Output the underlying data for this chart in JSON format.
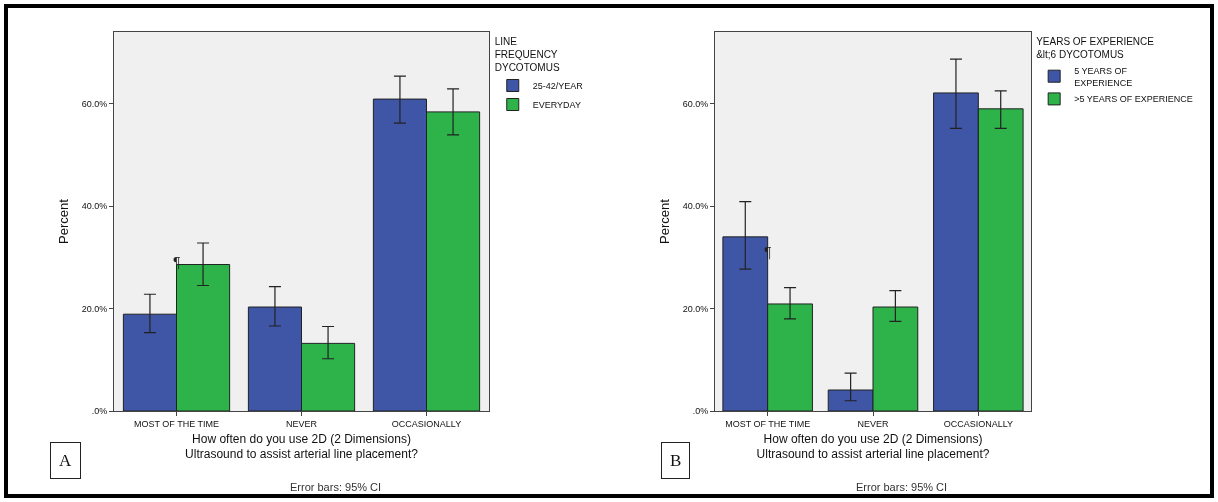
{
  "chart_data": [
    {
      "type": "bar",
      "xlabel": "How often do you use 2D (2 Dimensions)\nUltrasound to assist arterial line placement?",
      "ylabel": "Percent",
      "legend_title": "LINE\nFREQUENCY\nDYCOTOMUS",
      "categories": [
        "MOST OF THE TIME",
        "NEVER",
        "OCCASIONALLY"
      ],
      "series": [
        {
          "name": "25-42/YEAR",
          "color": "#3f55a6",
          "values": [
            18.9,
            20.3,
            60.9
          ],
          "errors": [
            [
              15.3,
              22.8
            ],
            [
              16.6,
              24.3
            ],
            [
              56.2,
              65.4
            ]
          ]
        },
        {
          "name": "EVERYDAY",
          "color": "#2db34a",
          "values": [
            28.6,
            13.2,
            58.4
          ],
          "errors": [
            [
              24.5,
              32.8
            ],
            [
              10.2,
              16.5
            ],
            [
              53.9,
              62.9
            ]
          ]
        }
      ],
      "ylim": [
        0,
        74
      ],
      "yticks": [
        {
          "value": 0,
          "label": ".0%"
        },
        {
          "value": 20,
          "label": "20.0%"
        },
        {
          "value": 40,
          "label": "40.0%"
        },
        {
          "value": 60,
          "label": "60.0%"
        }
      ],
      "grid": false,
      "legend": "right",
      "annotations": [
        "A",
        "Error bars: 95% CI",
        {
          "text": "¶",
          "x": "MOST OF THE TIME",
          "y": 29
        }
      ]
    },
    {
      "type": "bar",
      "xlabel": "How often do you use 2D (2 Dimensions)\nUltrasound to assist arterial line placement?",
      "ylabel": "Percent",
      "legend_title": "YEARS OF EXPERIENCE\n&lt;6 DYCOTOMUS",
      "categories": [
        "MOST OF THE TIME",
        "NEVER",
        "OCCASIONALLY"
      ],
      "series": [
        {
          "name": "5 YEARS OF\nEXPERIENCE",
          "color": "#3f55a6",
          "values": [
            34.0,
            4.1,
            62.1
          ],
          "errors": [
            [
              27.7,
              40.9
            ],
            [
              2.0,
              7.4
            ],
            [
              55.2,
              68.7
            ]
          ]
        },
        {
          "name": ">5 YEARS OF EXPERIENCE",
          "color": "#2db34a",
          "values": [
            20.9,
            20.3,
            59.0
          ],
          "errors": [
            [
              18.0,
              24.1
            ],
            [
              17.5,
              23.5
            ],
            [
              55.2,
              62.5
            ]
          ]
        }
      ],
      "ylim": [
        0,
        74
      ],
      "yticks": [
        {
          "value": 0,
          "label": ".0%"
        },
        {
          "value": 20,
          "label": "20.0%"
        },
        {
          "value": 40,
          "label": "40.0%"
        },
        {
          "value": 60,
          "label": "60.0%"
        }
      ],
      "grid": false,
      "legend": "right",
      "annotations": [
        "B",
        "Error bars: 95% CI",
        {
          "text": "¶",
          "x": "MOST OF THE TIME",
          "y": 31
        }
      ]
    }
  ]
}
